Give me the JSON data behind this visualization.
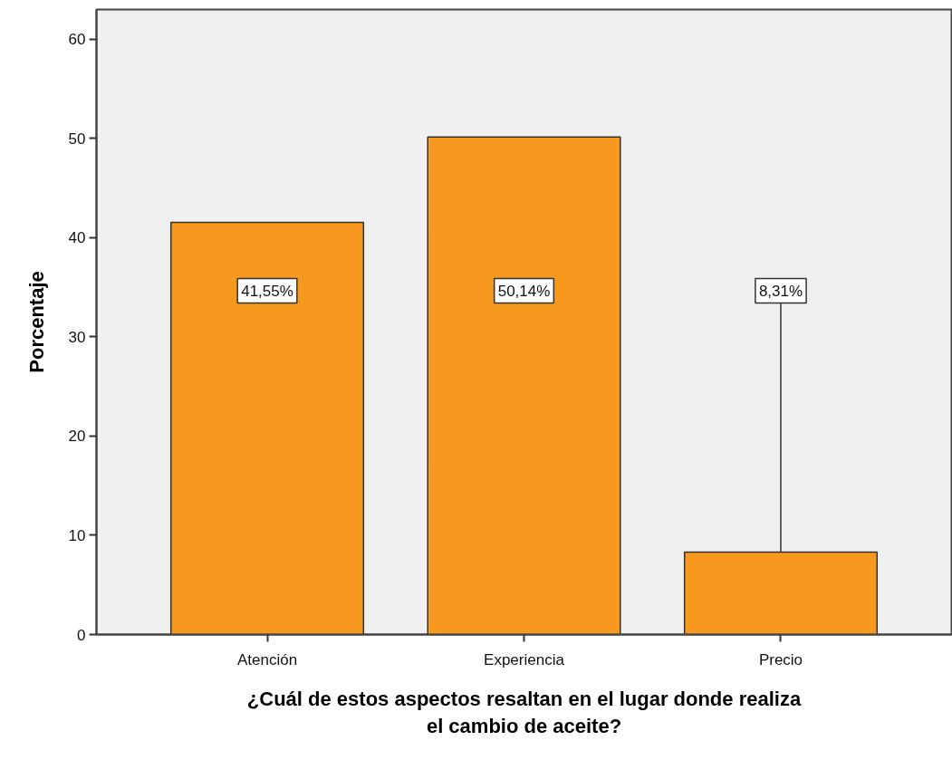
{
  "chart_data": {
    "type": "bar",
    "xlabel": "¿Cuál de estos aspectos resaltan en el lugar donde realiza el cambio de aceite?",
    "ylabel": "Porcentaje",
    "categories": [
      "Atención",
      "Experiencia",
      "Precio"
    ],
    "values": [
      41.55,
      50.14,
      8.31
    ],
    "color": "#f7991f",
    "value_labels": [
      "41,55%",
      "50,14%",
      "8,31%"
    ],
    "ylim": [
      0,
      63
    ],
    "yticks": [
      0,
      10,
      20,
      30,
      40,
      50,
      60
    ],
    "grid": false
  }
}
